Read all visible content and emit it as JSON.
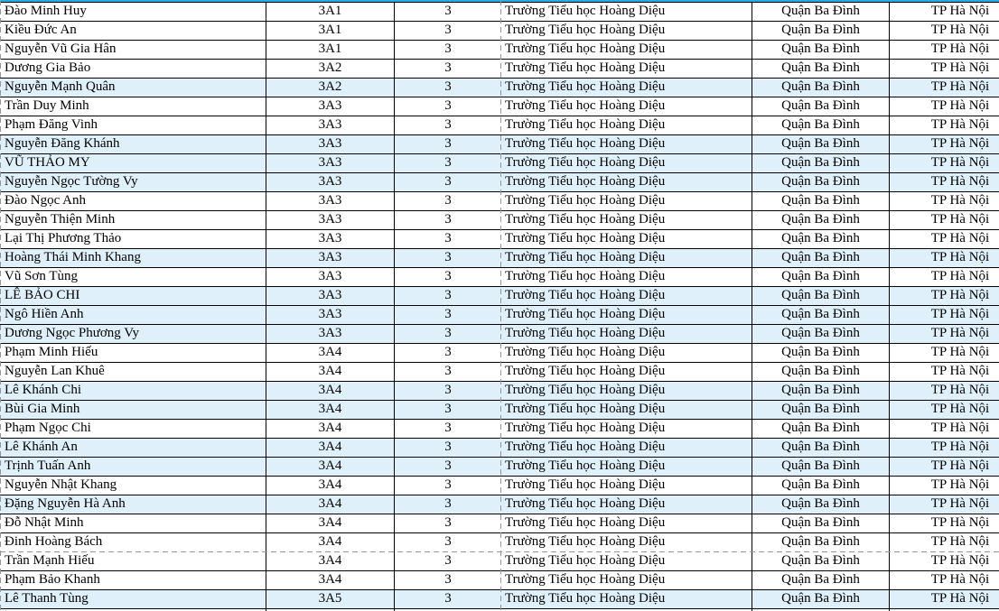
{
  "page": {
    "accent_line_color": "#29ABE2",
    "row_highlight_color": "#DFF0FA",
    "pagebreak_line_color": "#969696"
  },
  "table": {
    "columns": [
      {
        "key": "name",
        "align": "left"
      },
      {
        "key": "class",
        "align": "center"
      },
      {
        "key": "grade",
        "align": "center"
      },
      {
        "key": "school",
        "align": "left"
      },
      {
        "key": "district",
        "align": "center"
      },
      {
        "key": "city",
        "align": "center"
      }
    ],
    "page_breaks": {
      "horizontal_after_row": 29,
      "vertical_after_column": 3,
      "vertical_at_left_edge": true
    },
    "partial_empty_row": true,
    "rows": [
      {
        "name": "Đào Minh Huy",
        "class": "3A1",
        "grade": "3",
        "school": "Trường Tiểu học Hoàng Diệu",
        "district": "Quận Ba Đình",
        "city": "TP Hà Nội",
        "highlight": false
      },
      {
        "name": "Kiều Đức An",
        "class": "3A1",
        "grade": "3",
        "school": "Trường Tiểu học Hoàng Diệu",
        "district": "Quận Ba Đình",
        "city": "TP Hà Nội",
        "highlight": false
      },
      {
        "name": "Nguyễn Vũ Gia Hân",
        "class": "3A1",
        "grade": "3",
        "school": "Trường Tiểu học Hoàng Diệu",
        "district": "Quận Ba Đình",
        "city": "TP Hà Nội",
        "highlight": false
      },
      {
        "name": "Dương Gia Bảo",
        "class": "3A2",
        "grade": "3",
        "school": "Trường Tiểu học Hoàng Diệu",
        "district": "Quận Ba Đình",
        "city": "TP Hà Nội",
        "highlight": false
      },
      {
        "name": "Nguyễn Mạnh Quân",
        "class": "3A2",
        "grade": "3",
        "school": "Trường Tiểu học Hoàng Diệu",
        "district": "Quận Ba Đình",
        "city": "TP Hà Nội",
        "highlight": true
      },
      {
        "name": "Trần Duy Minh",
        "class": "3A3",
        "grade": "3",
        "school": "Trường Tiểu học Hoàng Diệu",
        "district": "Quận Ba Đình",
        "city": "TP Hà Nội",
        "highlight": false
      },
      {
        "name": "Phạm Đăng Vinh",
        "class": "3A3",
        "grade": "3",
        "school": "Trường Tiểu học Hoàng Diệu",
        "district": "Quận Ba Đình",
        "city": "TP Hà Nội",
        "highlight": false
      },
      {
        "name": "Nguyễn Đăng Khánh",
        "class": "3A3",
        "grade": "3",
        "school": "Trường Tiểu học Hoàng Diệu",
        "district": "Quận Ba Đình",
        "city": "TP Hà Nội",
        "highlight": true
      },
      {
        "name": "VŨ THẢO MY",
        "class": "3A3",
        "grade": "3",
        "school": "Trường Tiểu học Hoàng Diệu",
        "district": "Quận Ba Đình",
        "city": "TP Hà Nội",
        "highlight": true
      },
      {
        "name": "Nguyễn Ngọc Tường Vy",
        "class": "3A3",
        "grade": "3",
        "school": "Trường Tiểu học Hoàng Diệu",
        "district": "Quận Ba Đình",
        "city": "TP Hà Nội",
        "highlight": true
      },
      {
        "name": "Đào Ngọc Anh",
        "class": "3A3",
        "grade": "3",
        "school": "Trường Tiểu học Hoàng Diệu",
        "district": "Quận Ba Đình",
        "city": "TP Hà Nội",
        "highlight": false
      },
      {
        "name": "Nguyễn Thiện Minh",
        "class": "3A3",
        "grade": "3",
        "school": "Trường Tiểu học Hoàng Diệu",
        "district": "Quận Ba Đình",
        "city": "TP Hà Nội",
        "highlight": false
      },
      {
        "name": "Lại Thị Phương Thảo",
        "class": "3A3",
        "grade": "3",
        "school": "Trường Tiểu học Hoàng Diệu",
        "district": "Quận Ba Đình",
        "city": "TP Hà Nội",
        "highlight": false
      },
      {
        "name": "Hoàng Thái Minh Khang",
        "class": "3A3",
        "grade": "3",
        "school": "Trường Tiểu học Hoàng Diệu",
        "district": "Quận Ba Đình",
        "city": "TP Hà Nội",
        "highlight": true
      },
      {
        "name": "Vũ Sơn Tùng",
        "class": "3A3",
        "grade": "3",
        "school": "Trường Tiểu học Hoàng Diệu",
        "district": "Quận Ba Đình",
        "city": "TP Hà Nội",
        "highlight": false
      },
      {
        "name": "LÊ BẢO CHI",
        "class": "3A3",
        "grade": "3",
        "school": "Trường Tiểu học Hoàng Diệu",
        "district": "Quận Ba Đình",
        "city": "TP Hà Nội",
        "highlight": true
      },
      {
        "name": "Ngô Hiền Anh",
        "class": "3A3",
        "grade": "3",
        "school": "Trường Tiểu học Hoàng Diệu",
        "district": "Quận Ba Đình",
        "city": "TP Hà Nội",
        "highlight": true
      },
      {
        "name": "Dương Ngọc Phương Vy",
        "class": "3A3",
        "grade": "3",
        "school": "Trường Tiểu học Hoàng Diệu",
        "district": "Quận Ba Đình",
        "city": "TP Hà Nội",
        "highlight": true
      },
      {
        "name": "Phạm Minh Hiếu",
        "class": "3A4",
        "grade": "3",
        "school": "Trường Tiểu học Hoàng Diệu",
        "district": "Quận Ba Đình",
        "city": "TP Hà Nội",
        "highlight": false
      },
      {
        "name": "Nguyễn Lan Khuê",
        "class": "3A4",
        "grade": "3",
        "school": "Trường Tiểu học Hoàng Diệu",
        "district": "Quận Ba Đình",
        "city": "TP Hà Nội",
        "highlight": false
      },
      {
        "name": "Lê Khánh Chi",
        "class": "3A4",
        "grade": "3",
        "school": "Trường Tiểu học Hoàng Diệu",
        "district": "Quận Ba Đình",
        "city": "TP Hà Nội",
        "highlight": true
      },
      {
        "name": "Bùi Gia Minh",
        "class": "3A4",
        "grade": "3",
        "school": "Trường Tiểu học Hoàng Diệu",
        "district": "Quận Ba Đình",
        "city": "TP Hà Nội",
        "highlight": true
      },
      {
        "name": "Phạm Ngọc Chi",
        "class": "3A4",
        "grade": "3",
        "school": "Trường Tiểu học Hoàng Diệu",
        "district": "Quận Ba Đình",
        "city": "TP Hà Nội",
        "highlight": false
      },
      {
        "name": "Lê Khánh An",
        "class": "3A4",
        "grade": "3",
        "school": "Trường Tiểu học Hoàng Diệu",
        "district": "Quận Ba Đình",
        "city": "TP Hà Nội",
        "highlight": true
      },
      {
        "name": "Trịnh Tuấn Anh",
        "class": "3A4",
        "grade": "3",
        "school": "Trường Tiểu học Hoàng Diệu",
        "district": "Quận Ba Đình",
        "city": "TP Hà Nội",
        "highlight": true
      },
      {
        "name": "Nguyễn Nhật Khang",
        "class": "3A4",
        "grade": "3",
        "school": "Trường Tiểu học Hoàng Diệu",
        "district": "Quận Ba Đình",
        "city": "TP Hà Nội",
        "highlight": false
      },
      {
        "name": "Đặng Nguyễn Hà Anh",
        "class": "3A4",
        "grade": "3",
        "school": "Trường Tiểu học Hoàng Diệu",
        "district": "Quận Ba Đình",
        "city": "TP Hà Nội",
        "highlight": true
      },
      {
        "name": "Đỗ Nhật Minh",
        "class": "3A4",
        "grade": "3",
        "school": "Trường Tiểu học Hoàng Diệu",
        "district": "Quận Ba Đình",
        "city": "TP Hà Nội",
        "highlight": false
      },
      {
        "name": "Đinh Hoàng Bách",
        "class": "3A4",
        "grade": "3",
        "school": "Trường Tiểu học Hoàng Diệu",
        "district": "Quận Ba Đình",
        "city": "TP Hà Nội",
        "highlight": false
      },
      {
        "name": "Trần Mạnh Hiếu",
        "class": "3A4",
        "grade": "3",
        "school": "Trường Tiểu học Hoàng Diệu",
        "district": "Quận Ba Đình",
        "city": "TP Hà Nội",
        "highlight": false
      },
      {
        "name": "Phạm Bảo Khanh",
        "class": "3A4",
        "grade": "3",
        "school": "Trường Tiểu học Hoàng Diệu",
        "district": "Quận Ba Đình",
        "city": "TP Hà Nội",
        "highlight": false
      },
      {
        "name": "Lê Thanh Tùng",
        "class": "3A5",
        "grade": "3",
        "school": "Trường Tiểu học Hoàng Diệu",
        "district": "Quận Ba Đình",
        "city": "TP Hà Nội",
        "highlight": true
      }
    ]
  }
}
